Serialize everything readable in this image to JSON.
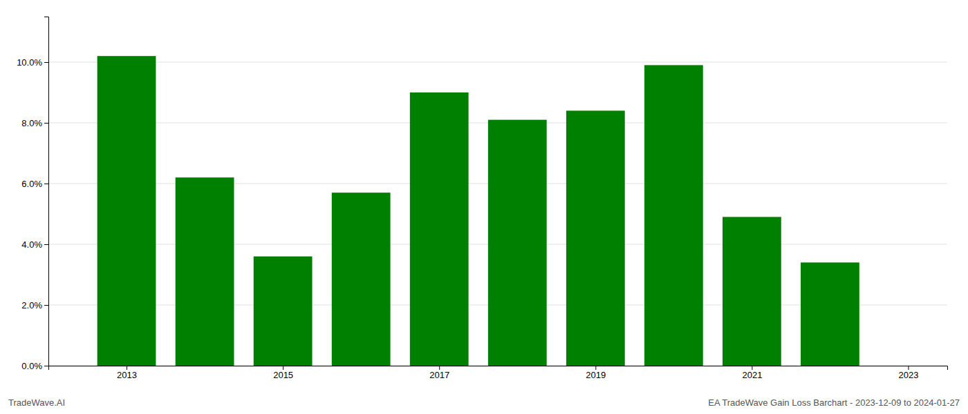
{
  "chart_data": {
    "type": "bar",
    "x": [
      2013,
      2014,
      2015,
      2016,
      2017,
      2018,
      2019,
      2020,
      2021,
      2022
    ],
    "values": [
      0.102,
      0.062,
      0.036,
      0.057,
      0.09,
      0.081,
      0.084,
      0.099,
      0.049,
      0.034
    ],
    "color": "#008000",
    "xlim": [
      2012.0,
      2023.5
    ],
    "xticks": [
      2013,
      2015,
      2017,
      2019,
      2021,
      2023
    ],
    "ylim": [
      0,
      0.115
    ],
    "yticks": [
      {
        "value": 0.0,
        "label": "0.0%"
      },
      {
        "value": 0.02,
        "label": "2.0%"
      },
      {
        "value": 0.04,
        "label": "4.0%"
      },
      {
        "value": 0.06,
        "label": "6.0%"
      },
      {
        "value": 0.08,
        "label": "8.0%"
      },
      {
        "value": 0.1,
        "label": "10.0%"
      }
    ],
    "grid": true,
    "annotations": [
      "TradeWave.AI",
      "EA TradeWave Gain Loss Barchart - 2023-12-09 to 2024-01-27"
    ]
  }
}
